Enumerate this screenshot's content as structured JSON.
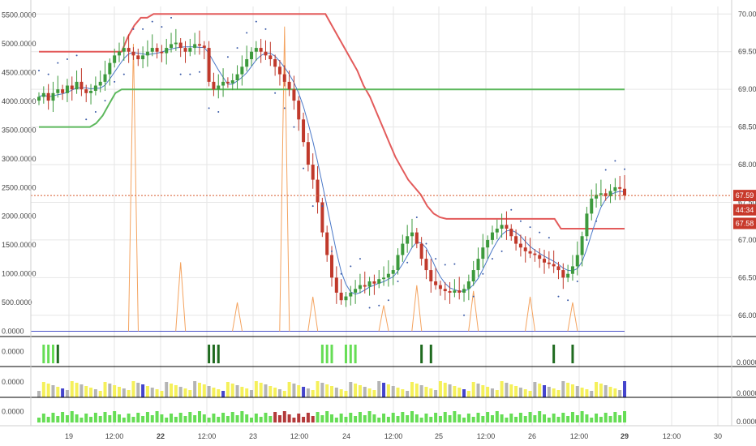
{
  "colors": {
    "up": "#3d9a3d",
    "down": "#c0392b",
    "upper_band": "#e35b5b",
    "lower_band": "#5cb85c",
    "ma": "#4a78c8",
    "psar": "#3b5ba8",
    "volume_line": "#f4a35f",
    "flat_line": "#4b54c8",
    "current_price_line": "#d65a2f",
    "tag_bg": "#c8392b",
    "grid": "#e6e6e6",
    "pane_border": "#000000",
    "bar_yellow": "#f5f05a",
    "bar_gray": "#b4b4b4",
    "bar_blue": "#4444cc",
    "bar_green": "#66dd55",
    "bar_red": "#b33a3a",
    "signal_green": "#66dd55",
    "signal_dark": "#1f6b1f"
  },
  "chart_data": {
    "type": "candlestick",
    "right_axis": {
      "ticks": [
        "70.00",
        "69.50",
        "69.00",
        "68.50",
        "68.00",
        "67.50",
        "67.00",
        "66.50",
        "66.00"
      ],
      "range": [
        65.75,
        70.1
      ]
    },
    "left_axis": {
      "ticks": [
        "5500.0000",
        "5000.0000",
        "4500.0000",
        "4000.0000",
        "3500.0000",
        "3000.0000",
        "2500.0000",
        "2000.0000",
        "1500.0000",
        "1000.0000",
        "500.0000",
        "0.0000"
      ],
      "range": [
        -50,
        5650
      ]
    },
    "x_axis": {
      "labels": [
        "19",
        "12:00",
        "22",
        "12:00",
        "23",
        "12:00",
        "24",
        "12:00",
        "25",
        "12:00",
        "26",
        "12:00",
        "29",
        "12:00",
        "30"
      ],
      "bold": [
        false,
        false,
        true,
        false,
        false,
        false,
        false,
        false,
        false,
        false,
        false,
        false,
        true,
        false,
        false
      ]
    },
    "price_tags": [
      {
        "text": "67.59",
        "price": 67.59
      },
      {
        "text": "44:34",
        "price": 67.4
      },
      {
        "text": "67.58",
        "price": 67.22
      }
    ],
    "current_price": 67.59,
    "closes": [
      68.9,
      68.95,
      68.85,
      68.95,
      69.0,
      68.95,
      69.05,
      69.0,
      69.1,
      69.0,
      68.95,
      68.98,
      69.05,
      69.1,
      69.2,
      69.35,
      69.45,
      69.5,
      69.55,
      69.5,
      69.45,
      69.4,
      69.45,
      69.5,
      69.55,
      69.5,
      69.48,
      69.55,
      69.6,
      69.62,
      69.55,
      69.5,
      69.55,
      69.6,
      69.58,
      69.55,
      69.1,
      69.0,
      69.05,
      69.1,
      69.08,
      69.12,
      69.2,
      69.3,
      69.4,
      69.5,
      69.55,
      69.5,
      69.45,
      69.4,
      69.3,
      69.2,
      69.1,
      69.0,
      68.85,
      68.6,
      68.3,
      68.0,
      67.8,
      67.5,
      67.1,
      66.8,
      66.5,
      66.3,
      66.2,
      66.25,
      66.3,
      66.35,
      66.4,
      66.38,
      66.45,
      66.42,
      66.48,
      66.5,
      66.55,
      66.6,
      66.8,
      66.95,
      67.05,
      67.1,
      66.95,
      66.75,
      66.6,
      66.45,
      66.4,
      66.35,
      66.32,
      66.3,
      66.33,
      66.3,
      66.35,
      66.45,
      66.6,
      66.75,
      66.9,
      67.0,
      67.1,
      67.15,
      67.2,
      67.15,
      67.05,
      66.95,
      66.9,
      66.85,
      66.82,
      66.8,
      66.75,
      66.7,
      66.68,
      66.65,
      66.6,
      66.5,
      66.55,
      66.65,
      66.8,
      67.05,
      67.35,
      67.55,
      67.6,
      67.62,
      67.58,
      67.65,
      67.7,
      67.68,
      67.59
    ],
    "candle_count": 125,
    "upper_band": [
      69.5,
      69.5,
      69.5,
      69.5,
      69.5,
      69.5,
      69.5,
      69.5,
      69.5,
      69.5,
      69.5,
      69.5,
      69.5,
      69.5,
      69.7,
      69.85,
      69.95,
      69.95,
      70.0,
      70.0,
      70.0,
      70.0,
      70.0,
      70.0,
      70.0,
      70.0,
      70.0,
      70.0,
      70.0,
      70.0,
      70.0,
      70.0,
      70.0,
      70.0,
      70.0,
      70.0,
      70.0,
      70.0,
      70.0,
      70.0,
      70.0,
      70.0,
      70.0,
      70.0,
      70.0,
      70.0,
      69.85,
      69.7,
      69.55,
      69.4,
      69.25,
      69.05,
      68.9,
      68.7,
      68.5,
      68.3,
      68.1,
      67.95,
      67.8,
      67.7,
      67.6,
      67.45,
      67.35,
      67.3,
      67.28,
      67.28,
      67.28,
      67.28,
      67.28,
      67.28,
      67.28,
      67.28,
      67.28,
      67.28,
      67.28,
      67.28,
      67.28,
      67.28,
      67.28,
      67.28,
      67.28,
      67.28,
      67.15,
      67.15,
      67.15,
      67.15,
      67.15,
      67.15,
      67.15,
      67.15,
      67.15,
      67.15,
      67.15
    ],
    "lower_band": [
      68.5,
      68.5,
      68.5,
      68.5,
      68.5,
      68.5,
      68.5,
      68.5,
      68.5,
      68.55,
      68.65,
      68.8,
      68.95,
      69.0,
      69.0,
      69.0,
      69.0,
      69.0,
      69.0,
      69.0,
      69.0,
      69.0,
      69.0,
      69.0,
      69.0,
      69.0,
      69.0,
      69.0,
      69.0,
      69.0,
      69.0,
      69.0,
      69.0,
      69.0,
      69.0,
      69.0,
      69.0,
      69.0,
      69.0,
      69.0,
      69.0,
      69.0,
      69.0,
      69.0,
      69.0,
      69.0,
      69.0,
      69.0,
      69.0,
      69.0,
      69.0,
      69.0,
      69.0,
      69.0,
      69.0,
      69.0,
      69.0,
      69.0,
      69.0,
      69.0,
      69.0,
      69.0,
      69.0,
      69.0,
      69.0,
      69.0,
      69.0,
      69.0,
      69.0,
      69.0,
      69.0,
      69.0,
      69.0,
      69.0,
      69.0,
      69.0,
      69.0,
      69.0,
      69.0,
      69.0,
      69.0,
      69.0,
      69.0,
      69.0,
      69.0,
      69.0,
      69.0,
      69.0,
      69.0,
      69.0,
      69.0,
      69.0,
      69.0
    ],
    "volume_spikes": [
      {
        "at": 20,
        "value": 5000
      },
      {
        "at": 30,
        "value": 1200
      },
      {
        "at": 42,
        "value": 500
      },
      {
        "at": 52,
        "value": 5300
      },
      {
        "at": 58,
        "value": 600
      },
      {
        "at": 73,
        "value": 450
      },
      {
        "at": 80,
        "value": 800
      },
      {
        "at": 92,
        "value": 700
      },
      {
        "at": 104,
        "value": 600
      },
      {
        "at": 113,
        "value": 500
      }
    ]
  },
  "panes": [
    {
      "label": "0.0000",
      "right_label": "0.0000"
    },
    {
      "label": "0.0000",
      "right_label": "0.0000"
    },
    {
      "label": "0.0000",
      "right_label": "0.0000"
    }
  ]
}
